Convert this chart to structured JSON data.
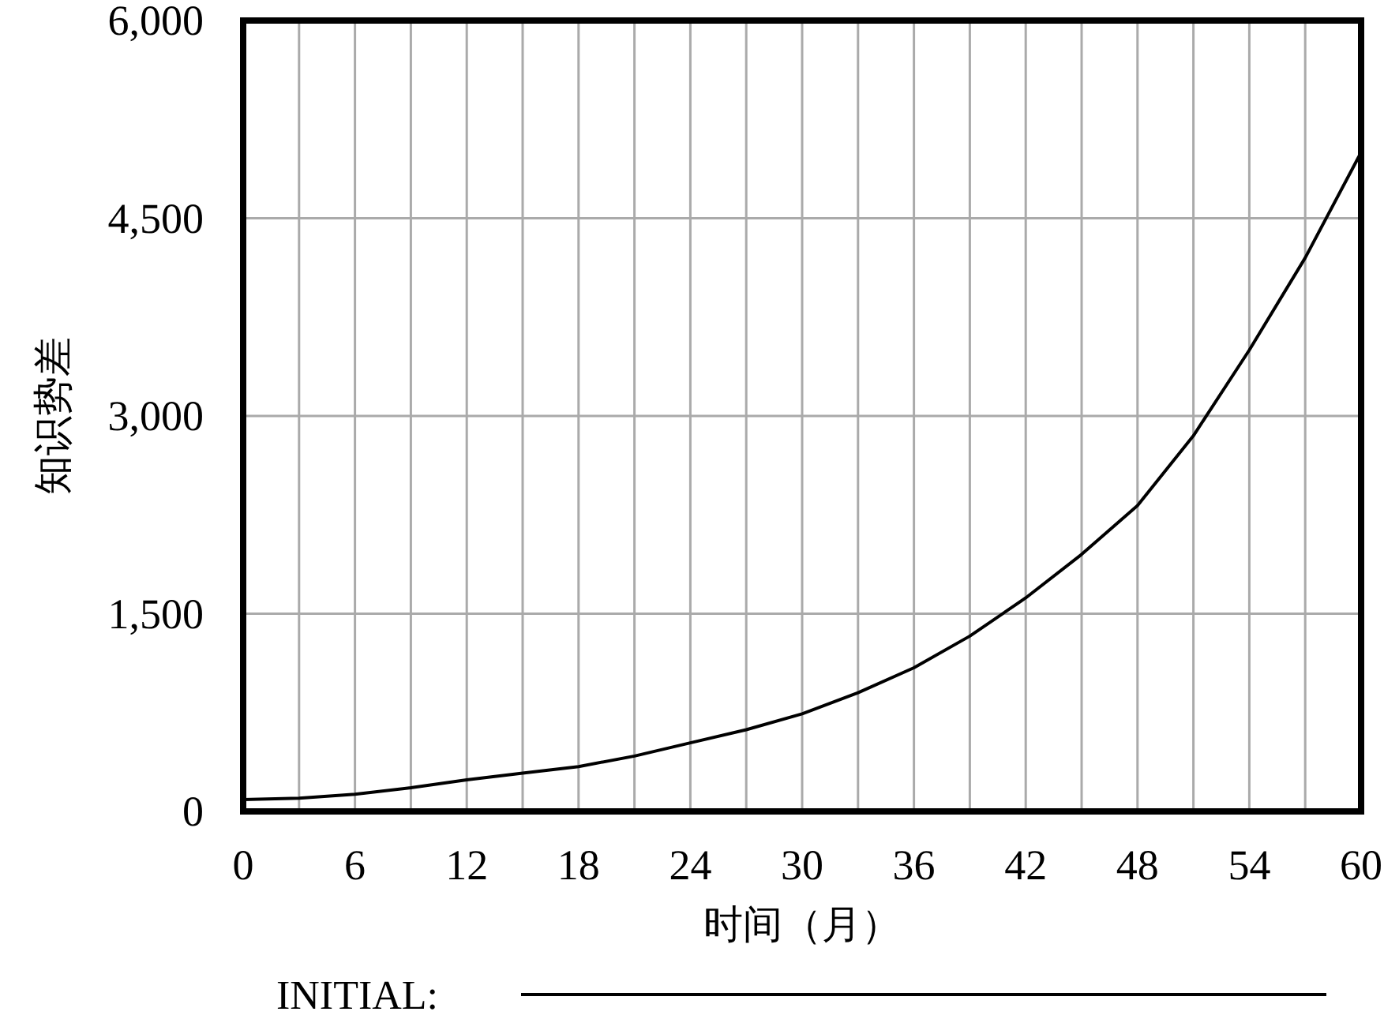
{
  "chart_data": {
    "type": "line",
    "xlabel": "时间（月）",
    "ylabel": "知识势差",
    "x": [
      0,
      3,
      6,
      9,
      12,
      15,
      18,
      21,
      24,
      27,
      30,
      33,
      36,
      39,
      42,
      45,
      48,
      51,
      54,
      57,
      60
    ],
    "series": [
      {
        "name": "INITIAL:",
        "color": "#000000",
        "values": [
          90,
          100,
          130,
          180,
          240,
          290,
          340,
          420,
          520,
          620,
          740,
          900,
          1090,
          1330,
          1620,
          1950,
          2320,
          2850,
          3500,
          4200,
          5000
        ]
      }
    ],
    "xlim": [
      0,
      60
    ],
    "ylim": [
      0,
      6000
    ],
    "xticks": [
      0,
      {
        "value": 3,
        "label": null
      },
      6,
      {
        "value": 9,
        "label": null
      },
      12,
      {
        "value": 15,
        "label": null
      },
      18,
      {
        "value": 21,
        "label": null
      },
      24,
      {
        "value": 27,
        "label": null
      },
      30,
      {
        "value": 33,
        "label": null
      },
      36,
      {
        "value": 39,
        "label": null
      },
      42,
      {
        "value": 45,
        "label": null
      },
      48,
      {
        "value": 51,
        "label": null
      },
      54,
      {
        "value": 57,
        "label": null
      },
      60
    ],
    "yticks": [
      {
        "value": 0,
        "label": "0"
      },
      {
        "value": 1500,
        "label": "1,500"
      },
      {
        "value": 3000,
        "label": "3,000"
      },
      {
        "value": 4500,
        "label": "4,500"
      },
      {
        "value": 6000,
        "label": "6,000"
      }
    ],
    "grid": true,
    "legend": "bottom",
    "line_style": "solid"
  }
}
